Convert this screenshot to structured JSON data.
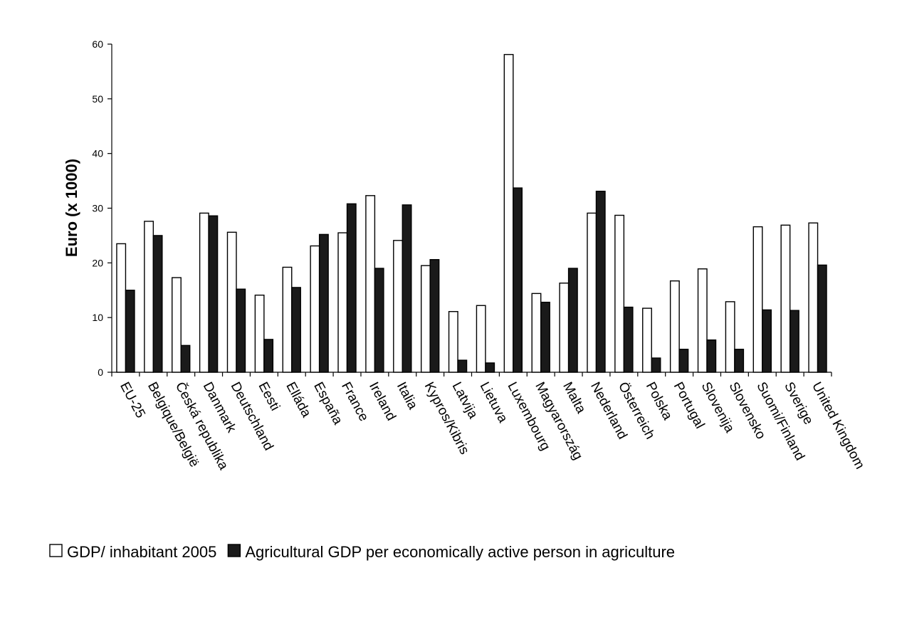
{
  "chart_data": {
    "type": "bar",
    "title": "",
    "xlabel": "",
    "ylabel": "Euro (x 1000)",
    "ylim": [
      0,
      60
    ],
    "yticks": [
      0,
      10,
      20,
      30,
      40,
      50,
      60
    ],
    "grid": false,
    "legend_position": "bottom",
    "categories": [
      "EU-25",
      "Belgique/België",
      "Česká republika",
      "Danmark",
      "Deutschland",
      "Eesti",
      "Elláda",
      "España",
      "France",
      "Ireland",
      "Italia",
      "Kypros/Kibris",
      "Latvija",
      "Lietuva",
      "Luxembourg",
      "Magyarország",
      "Malta",
      "Nederland",
      "Österreich",
      "Polska",
      "Portugal",
      "Slovenija",
      "Slovensko",
      "Suomi/Finland",
      "Sverige",
      "United Kingdom"
    ],
    "series": [
      {
        "name": "GDP/ inhabitant 2005",
        "color": "#ffffff",
        "values": [
          23.5,
          27.6,
          17.3,
          29.1,
          25.6,
          14.1,
          19.2,
          23.1,
          25.5,
          32.3,
          24.1,
          19.5,
          11.1,
          12.2,
          58.1,
          14.4,
          16.3,
          29.1,
          28.7,
          11.7,
          16.7,
          18.9,
          12.9,
          26.6,
          26.9,
          27.3
        ]
      },
      {
        "name": "Agricultural GDP per economically active person in agriculture",
        "color": "#1a1a1a",
        "values": [
          15.0,
          25.0,
          4.9,
          28.6,
          15.2,
          6.0,
          15.5,
          25.2,
          30.8,
          19.0,
          30.6,
          20.6,
          2.2,
          1.7,
          33.7,
          12.8,
          19.0,
          33.1,
          11.9,
          2.6,
          4.2,
          5.9,
          4.2,
          11.4,
          11.3,
          19.6
        ]
      }
    ]
  },
  "colors": {
    "axis": "#000000",
    "bar_outline": "#000000",
    "background": "#ffffff"
  }
}
